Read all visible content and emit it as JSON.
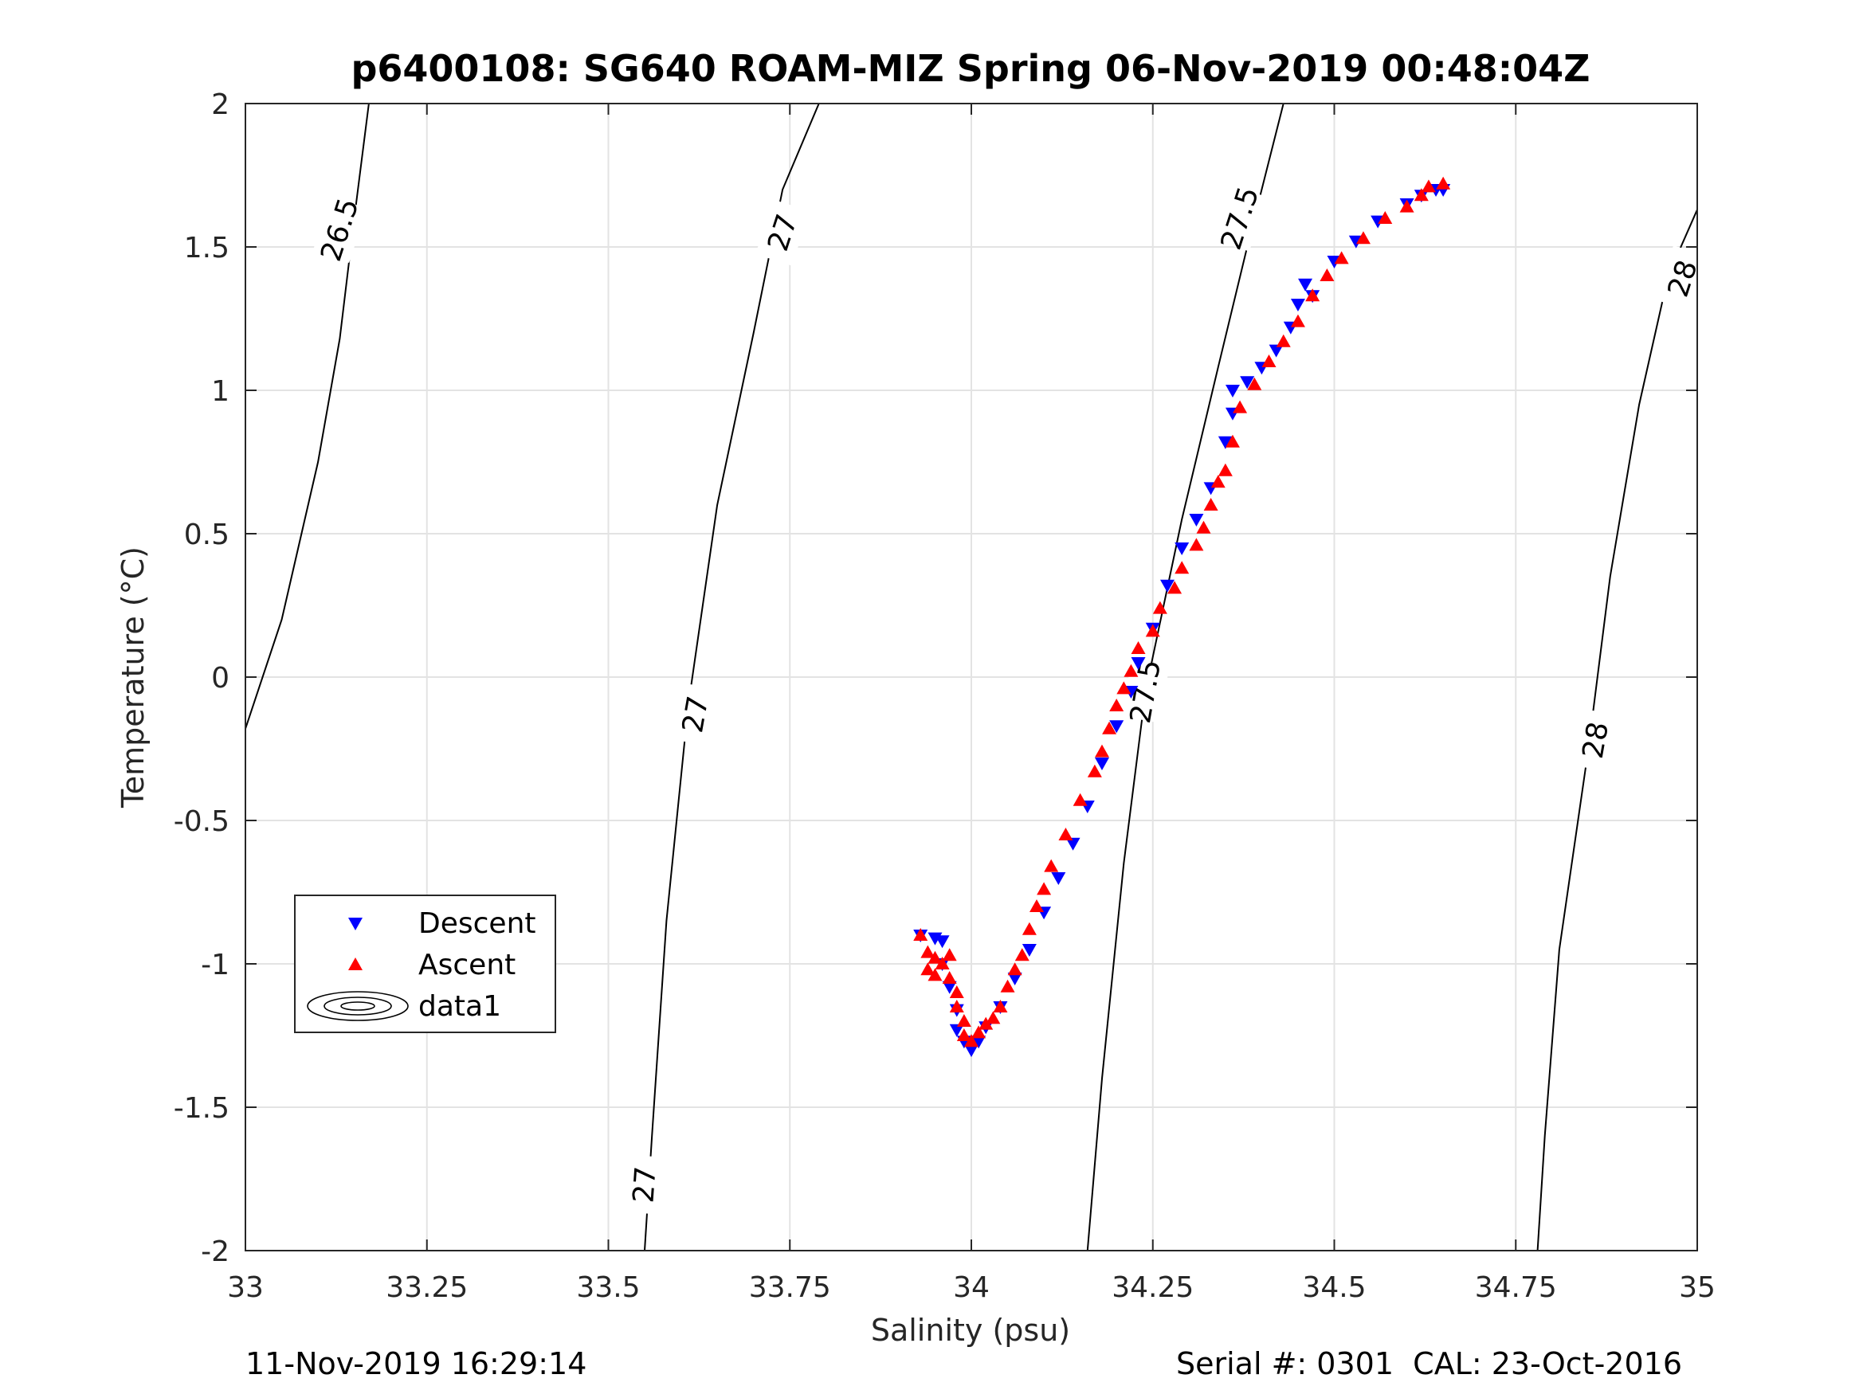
{
  "chart_data": {
    "type": "scatter",
    "title": "p6400108: SG640 ROAM-MIZ Spring 06-Nov-2019 00:48:04Z",
    "xlabel": "Salinity (psu)",
    "ylabel": "Temperature (°C)",
    "xlim": [
      33,
      35
    ],
    "ylim": [
      -2,
      2
    ],
    "x_ticks": [
      33,
      33.25,
      33.5,
      33.75,
      34,
      34.25,
      34.5,
      34.75,
      35
    ],
    "x_tick_labels": [
      "33",
      "33.25",
      "33.5",
      "33.75",
      "34",
      "34.25",
      "34.5",
      "34.75",
      "35"
    ],
    "y_ticks": [
      -2,
      -1.5,
      -1,
      -0.5,
      0,
      0.5,
      1,
      1.5,
      2
    ],
    "y_tick_labels": [
      "-2",
      "-1.5",
      "-1",
      "-0.5",
      "0",
      "0.5",
      "1",
      "1.5",
      "2"
    ],
    "grid": true,
    "legend_position": "left",
    "legend": [
      "Descent",
      "Ascent",
      "data1"
    ],
    "series": [
      {
        "name": "Descent",
        "marker": "triangle-down",
        "color": "#0000ff",
        "points": [
          [
            33.93,
            -0.9
          ],
          [
            33.95,
            -0.91
          ],
          [
            33.96,
            -0.92
          ],
          [
            33.96,
            -1.0
          ],
          [
            33.97,
            -1.08
          ],
          [
            33.98,
            -1.16
          ],
          [
            33.98,
            -1.23
          ],
          [
            33.99,
            -1.27
          ],
          [
            34.0,
            -1.3
          ],
          [
            34.01,
            -1.27
          ],
          [
            34.02,
            -1.22
          ],
          [
            34.04,
            -1.15
          ],
          [
            34.06,
            -1.05
          ],
          [
            34.08,
            -0.95
          ],
          [
            34.1,
            -0.82
          ],
          [
            34.12,
            -0.7
          ],
          [
            34.14,
            -0.58
          ],
          [
            34.16,
            -0.45
          ],
          [
            34.18,
            -0.3
          ],
          [
            34.2,
            -0.17
          ],
          [
            34.22,
            -0.05
          ],
          [
            34.23,
            0.05
          ],
          [
            34.25,
            0.17
          ],
          [
            34.27,
            0.32
          ],
          [
            34.29,
            0.45
          ],
          [
            34.31,
            0.55
          ],
          [
            34.33,
            0.66
          ],
          [
            34.35,
            0.82
          ],
          [
            34.36,
            0.92
          ],
          [
            34.36,
            1.0
          ],
          [
            34.38,
            1.03
          ],
          [
            34.4,
            1.08
          ],
          [
            34.42,
            1.14
          ],
          [
            34.44,
            1.22
          ],
          [
            34.45,
            1.3
          ],
          [
            34.46,
            1.37
          ],
          [
            34.47,
            1.33
          ],
          [
            34.5,
            1.45
          ],
          [
            34.53,
            1.52
          ],
          [
            34.56,
            1.59
          ],
          [
            34.6,
            1.65
          ],
          [
            34.62,
            1.68
          ],
          [
            34.64,
            1.7
          ],
          [
            34.65,
            1.7
          ]
        ]
      },
      {
        "name": "Ascent",
        "marker": "triangle-up",
        "color": "#ff0000",
        "points": [
          [
            33.93,
            -0.9
          ],
          [
            33.94,
            -0.96
          ],
          [
            33.94,
            -1.02
          ],
          [
            33.95,
            -0.98
          ],
          [
            33.95,
            -1.04
          ],
          [
            33.96,
            -1.0
          ],
          [
            33.97,
            -0.97
          ],
          [
            33.97,
            -1.05
          ],
          [
            33.98,
            -1.1
          ],
          [
            33.98,
            -1.15
          ],
          [
            33.99,
            -1.2
          ],
          [
            33.99,
            -1.25
          ],
          [
            34.0,
            -1.27
          ],
          [
            34.01,
            -1.24
          ],
          [
            34.02,
            -1.21
          ],
          [
            34.03,
            -1.19
          ],
          [
            34.04,
            -1.15
          ],
          [
            34.05,
            -1.08
          ],
          [
            34.06,
            -1.02
          ],
          [
            34.07,
            -0.97
          ],
          [
            34.08,
            -0.88
          ],
          [
            34.09,
            -0.8
          ],
          [
            34.1,
            -0.74
          ],
          [
            34.11,
            -0.66
          ],
          [
            34.13,
            -0.55
          ],
          [
            34.15,
            -0.43
          ],
          [
            34.17,
            -0.33
          ],
          [
            34.18,
            -0.26
          ],
          [
            34.19,
            -0.18
          ],
          [
            34.2,
            -0.1
          ],
          [
            34.21,
            -0.04
          ],
          [
            34.22,
            0.02
          ],
          [
            34.23,
            0.1
          ],
          [
            34.25,
            0.16
          ],
          [
            34.26,
            0.24
          ],
          [
            34.28,
            0.31
          ],
          [
            34.29,
            0.38
          ],
          [
            34.31,
            0.46
          ],
          [
            34.32,
            0.52
          ],
          [
            34.33,
            0.6
          ],
          [
            34.34,
            0.68
          ],
          [
            34.35,
            0.72
          ],
          [
            34.36,
            0.82
          ],
          [
            34.37,
            0.94
          ],
          [
            34.39,
            1.02
          ],
          [
            34.41,
            1.1
          ],
          [
            34.43,
            1.17
          ],
          [
            34.45,
            1.24
          ],
          [
            34.47,
            1.33
          ],
          [
            34.49,
            1.4
          ],
          [
            34.51,
            1.46
          ],
          [
            34.54,
            1.53
          ],
          [
            34.57,
            1.6
          ],
          [
            34.6,
            1.64
          ],
          [
            34.62,
            1.68
          ],
          [
            34.63,
            1.71
          ],
          [
            34.65,
            1.72
          ]
        ]
      }
    ],
    "contours": [
      {
        "level": "26.5",
        "points": [
          [
            33.0,
            -0.18
          ],
          [
            33.05,
            0.2
          ],
          [
            33.1,
            0.75
          ],
          [
            33.13,
            1.18
          ],
          [
            33.15,
            1.6
          ],
          [
            33.17,
            2.0
          ]
        ],
        "labels": [
          [
            33.13,
            1.56,
            -72
          ]
        ]
      },
      {
        "level": "27",
        "points": [
          [
            33.55,
            -2.0
          ],
          [
            33.56,
            -1.6
          ],
          [
            33.58,
            -0.85
          ],
          [
            33.61,
            -0.1
          ],
          [
            33.65,
            0.6
          ],
          [
            33.7,
            1.2
          ],
          [
            33.74,
            1.7
          ],
          [
            33.79,
            2.0
          ]
        ],
        "labels": [
          [
            33.55,
            -1.77,
            -86
          ],
          [
            33.62,
            -0.13,
            -80
          ],
          [
            33.74,
            1.55,
            -72
          ]
        ]
      },
      {
        "level": "27.5",
        "points": [
          [
            34.16,
            -2.0
          ],
          [
            34.18,
            -1.4
          ],
          [
            34.21,
            -0.65
          ],
          [
            34.24,
            -0.05
          ],
          [
            34.29,
            0.55
          ],
          [
            34.34,
            1.08
          ],
          [
            34.38,
            1.5
          ],
          [
            34.43,
            2.0
          ]
        ],
        "labels": [
          [
            34.24,
            -0.05,
            -80
          ],
          [
            34.37,
            1.6,
            -72
          ]
        ]
      },
      {
        "level": "28",
        "points": [
          [
            34.78,
            -2.0
          ],
          [
            34.79,
            -1.6
          ],
          [
            34.81,
            -0.95
          ],
          [
            34.85,
            -0.25
          ],
          [
            34.88,
            0.35
          ],
          [
            34.92,
            0.95
          ],
          [
            34.96,
            1.4
          ],
          [
            35.0,
            1.63
          ]
        ],
        "labels": [
          [
            34.86,
            -0.22,
            -80
          ],
          [
            34.98,
            1.39,
            -72
          ]
        ]
      }
    ]
  },
  "footer": {
    "timestamp": "11-Nov-2019 16:29:14",
    "serial": "Serial #: 0301  CAL: 23-Oct-2016"
  }
}
